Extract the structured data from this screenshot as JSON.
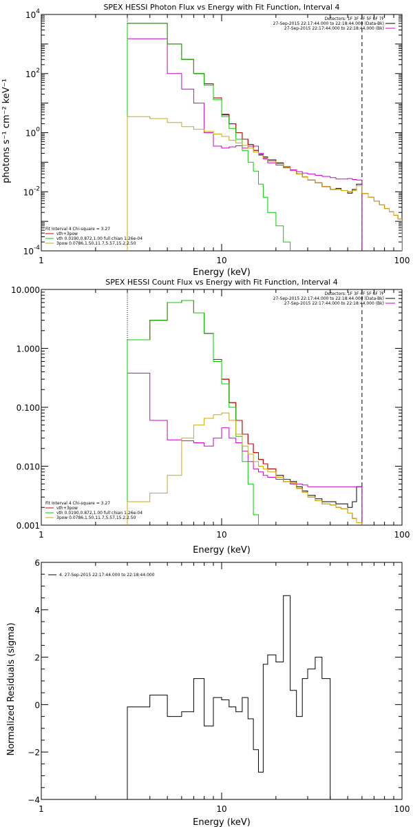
{
  "chart_data": [
    {
      "type": "line",
      "title": "SPEX HESSI Photon Flux vs Energy with Fit Function, Interval 4",
      "xlabel": "Energy (keV)",
      "ylabel": "photons s⁻¹ cm⁻² keV⁻¹",
      "xscale": "log",
      "yscale": "log",
      "xlim": [
        1,
        100
      ],
      "ylim": [
        0.0001,
        10000
      ],
      "xticks": [
        {
          "v": 1,
          "label": "1"
        },
        {
          "v": 10,
          "label": "10"
        },
        {
          "v": 100,
          "label": "100"
        }
      ],
      "yticks": [
        {
          "v": 0.0001,
          "base": "10",
          "exp": "-4"
        },
        {
          "v": 0.01,
          "base": "10",
          "exp": "-2"
        },
        {
          "v": 1,
          "base": "10",
          "exp": "0"
        },
        {
          "v": 100,
          "base": "10",
          "exp": "2"
        },
        {
          "v": 10000,
          "base": "10",
          "exp": "4"
        }
      ],
      "vlines": [
        {
          "x": 3,
          "style": "dotted"
        },
        {
          "x": 60,
          "style": "dashed"
        }
      ],
      "legend_right": {
        "position": "top-right",
        "lines": [
          "Detectors: 1F 3F 4F 5F 6F 7F",
          "27-Sep-2015 22:17:44.000 to 22:18:44.000 (Data-Bk)",
          "27-Sep-2015 22:17:44.000 to 22:18:44.000 (Bk)"
        ],
        "colors": [
          "#000000",
          "#000000",
          "#cc00cc"
        ]
      },
      "legend_left": {
        "position": "bottom-left",
        "lines": [
          "Fit Interval 4   Chi-square = 3.27",
          "vth+3pow",
          "vth 0.0190,0.872,1.00  full chian 1.26e-04",
          "3pow 0.0786,1.50,11.7,5.57,15.2,2.50"
        ],
        "colors": [
          "#000000",
          "#cc0000",
          "#00cc00",
          "#ccaa00"
        ]
      },
      "x_edges": [
        3,
        4,
        5,
        6,
        7,
        8,
        9,
        10,
        11,
        12,
        13,
        14,
        15,
        16,
        17,
        18,
        20,
        22,
        24,
        26,
        28,
        30,
        33,
        36,
        40,
        43,
        46,
        50,
        53,
        56,
        60,
        65,
        70,
        75,
        80,
        85,
        90,
        95,
        100
      ],
      "series": [
        {
          "name": "Data-Bk",
          "color": "#000000",
          "values": [
            5000,
            5000,
            1000,
            300,
            100,
            45,
            15,
            4,
            2,
            1,
            0.6,
            0.4,
            0.25,
            0.18,
            0.15,
            0.12,
            0.095,
            0.07,
            0.055,
            0.04,
            0.032,
            0.025,
            0.02,
            0.015,
            0.012,
            0.013,
            0.011,
            0.009,
            0.012,
            0.018
          ]
        },
        {
          "name": "Bk",
          "color": "#cc00cc",
          "values": [
            1500,
            1500,
            100,
            30,
            10,
            1,
            0.35,
            0.3,
            0.33,
            0.36,
            0.3,
            0.35,
            0.35,
            0.2,
            0.13,
            0.095,
            0.08,
            0.065,
            0.055,
            0.048,
            0.043,
            0.04,
            0.036,
            0.033,
            0.03,
            0.027,
            0.027,
            0.028,
            0.026,
            0.025
          ]
        },
        {
          "name": "vth+3pow",
          "color": "#cc0000",
          "values": [
            5000,
            5000,
            1000,
            300,
            100,
            45,
            15,
            4.2,
            2,
            1,
            0.6,
            0.4,
            0.25,
            0.17,
            0.14,
            0.11,
            0.09,
            0.068,
            0.052,
            0.04,
            0.032,
            0.025,
            0.02,
            0.015,
            0.012,
            0.012,
            0.011,
            0.01,
            0.011,
            0.016,
            0.0087,
            0.0065,
            0.0048,
            0.0036,
            0.0027,
            0.0021,
            0.0016,
            0.0012
          ]
        },
        {
          "name": "vth",
          "color": "#00cc00",
          "values": [
            5000,
            5000,
            1000,
            300,
            100,
            40,
            13,
            3.5,
            1.4,
            0.6,
            0.25,
            0.1,
            0.05,
            0.018,
            0.0065,
            0.002,
            0.0007,
            0.0002
          ]
        },
        {
          "name": "3pow",
          "color": "#ccaa00",
          "values": [
            3.5,
            3,
            2.2,
            1.6,
            1.3,
            1.1,
            0.9,
            0.75,
            0.55,
            0.45,
            0.37,
            0.3,
            0.22,
            0.17,
            0.14,
            0.11,
            0.09,
            0.068,
            0.052,
            0.04,
            0.032,
            0.025,
            0.02,
            0.015,
            0.012,
            0.012,
            0.011,
            0.01,
            0.011,
            0.016,
            0.0087,
            0.0065,
            0.0048,
            0.0036,
            0.0027,
            0.0021,
            0.0016,
            0.0012
          ]
        }
      ]
    },
    {
      "type": "line",
      "title": "SPEX HESSI Count Flux vs Energy with Fit Function, Interval 4",
      "xlabel": "Energy (keV)",
      "ylabel": "",
      "xscale": "log",
      "yscale": "log",
      "xlim": [
        1,
        100
      ],
      "ylim": [
        0.001,
        10
      ],
      "xticks": [
        {
          "v": 1,
          "label": "1"
        },
        {
          "v": 10,
          "label": "10"
        },
        {
          "v": 100,
          "label": "100"
        }
      ],
      "yticks": [
        {
          "v": 0.001,
          "label": "0.001"
        },
        {
          "v": 0.01,
          "label": "0.010"
        },
        {
          "v": 0.1,
          "label": "0.100"
        },
        {
          "v": 1,
          "label": "1.000"
        },
        {
          "v": 10,
          "label": "10.000"
        }
      ],
      "vlines": [
        {
          "x": 3,
          "style": "dotted"
        },
        {
          "x": 60,
          "style": "dashed"
        }
      ],
      "legend_right": {
        "position": "top-right",
        "lines": [
          "Detectors: 1F 3F 4F 5F 6F 7F",
          "27-Sep-2015 22:17:44.000 to 22:18:44.000 (Data-Bk)",
          "27-Sep-2015 22:17:44.000 to 22:18:44.000 (Bk)"
        ],
        "colors": [
          "#000000",
          "#000000",
          "#cc00cc"
        ]
      },
      "legend_left": {
        "position": "bottom-left",
        "lines": [
          "Fit Interval 4   Chi-square = 3.27",
          "vth+3pow",
          "vth 0.0190,0.872,1.00  full chian 1.26e-04",
          "3pow 0.0786,1.50,11.7,5.57,15.2,2.50"
        ],
        "colors": [
          "#000000",
          "#cc0000",
          "#00cc00",
          "#ccaa00"
        ]
      },
      "x_edges": [
        3,
        4,
        5,
        6,
        7,
        8,
        9,
        10,
        11,
        12,
        13,
        14,
        15,
        16,
        17,
        18,
        20,
        22,
        24,
        26,
        28,
        30,
        33,
        36,
        40,
        43,
        46,
        50,
        53,
        56,
        60
      ],
      "series": [
        {
          "name": "Data-Bk",
          "color": "#000000",
          "values": [
            1.4,
            3,
            6,
            6.5,
            4,
            1.8,
            0.65,
            0.3,
            0.12,
            0.06,
            0.035,
            0.024,
            0.017,
            0.013,
            0.011,
            0.009,
            0.007,
            0.006,
            0.0055,
            0.0045,
            0.0038,
            0.0032,
            0.0028,
            0.0025,
            0.0025,
            0.0023,
            0.0023,
            0.002,
            0.0025,
            0.0045
          ]
        },
        {
          "name": "Bk",
          "color": "#cc00cc",
          "values": [
            0.38,
            0.06,
            0.028,
            0.027,
            0.025,
            0.022,
            0.03,
            0.045,
            0.03,
            0.025,
            0.018,
            0.012,
            0.009,
            0.008,
            0.007,
            0.0065,
            0.006,
            0.0055,
            0.005,
            0.005,
            0.0048,
            0.0045,
            0.0045,
            0.0045,
            0.0045,
            0.0045,
            0.0045,
            0.0045,
            0.0045,
            0.0045
          ]
        },
        {
          "name": "vth+3pow",
          "color": "#cc0000",
          "values": [
            1.4,
            3,
            6,
            6.5,
            4,
            1.8,
            0.65,
            0.3,
            0.12,
            0.06,
            0.035,
            0.024,
            0.017,
            0.013,
            0.011,
            0.009,
            0.007,
            0.006,
            0.0052,
            0.0042,
            0.0036,
            0.003,
            0.0026,
            0.0023,
            0.0022,
            0.002,
            0.0019,
            0.0016,
            0.0013,
            0.0011
          ]
        },
        {
          "name": "vth",
          "color": "#00cc00",
          "values": [
            1.4,
            3,
            6,
            6.5,
            4,
            1.8,
            0.6,
            0.25,
            0.1,
            0.032,
            0.012,
            0.005,
            0.0015
          ]
        },
        {
          "name": "3pow",
          "color": "#ccaa00",
          "values": [
            0.0025,
            0.0035,
            0.007,
            0.03,
            0.05,
            0.065,
            0.075,
            0.08,
            0.06,
            0.035,
            0.022,
            0.016,
            0.012,
            0.01,
            0.009,
            0.008,
            0.0065,
            0.0055,
            0.0052,
            0.0042,
            0.0036,
            0.003,
            0.0026,
            0.0023,
            0.0022,
            0.002,
            0.0019,
            0.0016,
            0.0013,
            0.0011
          ]
        }
      ]
    },
    {
      "type": "line",
      "title": "",
      "xlabel": "Energy (keV)",
      "ylabel": "Normalized Residuals (sigma)",
      "xscale": "log",
      "yscale": "linear",
      "xlim": [
        1,
        100
      ],
      "ylim": [
        -4,
        6
      ],
      "xticks": [
        {
          "v": 1,
          "label": "1"
        },
        {
          "v": 10,
          "label": "10"
        },
        {
          "v": 100,
          "label": "100"
        }
      ],
      "yticks": [
        {
          "v": -4,
          "label": "−4"
        },
        {
          "v": -2,
          "label": "−2"
        },
        {
          "v": 0,
          "label": "0"
        },
        {
          "v": 2,
          "label": "2"
        },
        {
          "v": 4,
          "label": "4"
        },
        {
          "v": 6,
          "label": "6"
        }
      ],
      "legend": {
        "position": "top-left",
        "lines": [
          "4. 27-Sep-2015 22:17:44.000 to 22:18:44.000"
        ]
      },
      "x_edges": [
        3,
        4,
        5,
        6,
        7,
        8,
        9,
        10,
        11,
        12,
        13,
        14,
        15,
        16,
        17,
        18,
        20,
        22,
        24,
        26,
        28,
        30,
        33,
        36,
        40,
        43,
        46,
        50,
        53,
        56,
        60
      ],
      "series": [
        {
          "color": "#000000",
          "values": [
            -0.1,
            0.4,
            -0.5,
            -0.3,
            1.1,
            -0.9,
            0.3,
            0.2,
            -0.1,
            -0.3,
            0.3,
            -0.6,
            -1.9,
            -2.85,
            1.7,
            2.1,
            1.8,
            4.6,
            0.6,
            -0.5,
            1.1,
            1.5,
            2.0,
            1.1
          ]
        }
      ]
    }
  ]
}
